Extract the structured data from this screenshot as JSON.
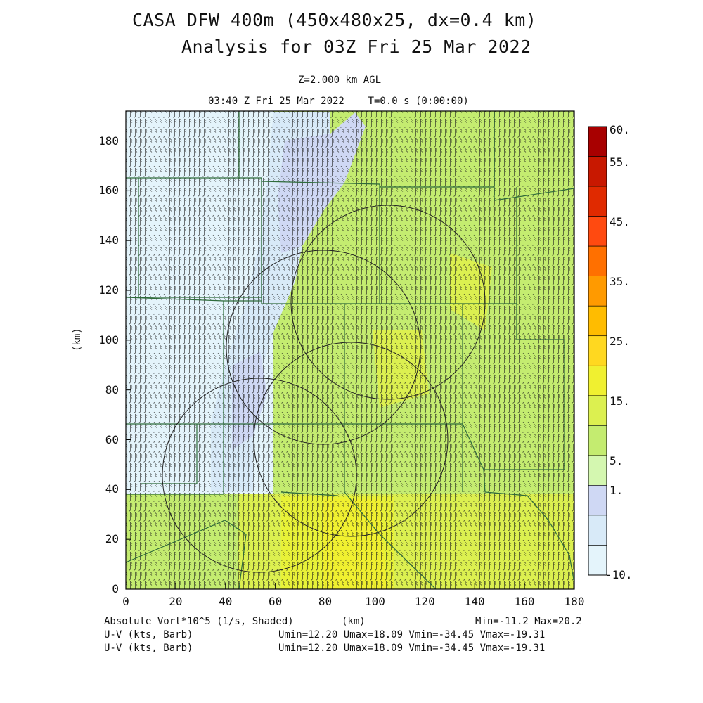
{
  "title": {
    "line1": "CASA DFW 400m (450x480x25, dx=0.4 km)",
    "line2": "Analysis for 03Z Fri 25 Mar 2022"
  },
  "subtitle": {
    "level": "Z=2.000 km AGL",
    "time": "03:40 Z Fri 25 Mar 2022    T=0.0 s (0:00:00)"
  },
  "axes": {
    "ylabel": "(km)",
    "xlabel": "(km)",
    "xticks": [
      "0",
      "20",
      "40",
      "60",
      "80",
      "100",
      "120",
      "140",
      "160",
      "180"
    ],
    "yticks": [
      "0",
      "20",
      "40",
      "60",
      "80",
      "100",
      "120",
      "140",
      "160",
      "180"
    ],
    "xrange": [
      0,
      180
    ],
    "yrange": [
      0,
      192
    ]
  },
  "colorbar": {
    "labels": [
      "60.",
      "55.",
      "45.",
      "35.",
      "25.",
      "15.",
      "5.",
      "1.",
      "-10."
    ],
    "colors": [
      "#a80000",
      "#c81800",
      "#e02a00",
      "#ff4a10",
      "#ff7000",
      "#ff9a00",
      "#ffbc00",
      "#ffd820",
      "#f0f030",
      "#dcf050",
      "#c4ec70",
      "#d4f7b0",
      "#cfd8f4",
      "#d8eaf8",
      "#e4f4fb"
    ]
  },
  "footer": {
    "field": "Absolute Vort*10^5 (1/s, Shaded)",
    "unit": "(km)",
    "minmax": "Min=-11.2 Max=20.2",
    "barb1_label": "U-V (kts, Barb)",
    "barb1_stats": "Umin=12.20 Umax=18.09 Vmin=-34.45 Vmax=-19.31",
    "barb2_label": "U-V (kts, Barb)",
    "barb2_stats": "Umin=12.20 Umax=18.09 Vmin=-34.45 Vmax=-19.31"
  },
  "chart_data": {
    "type": "heatmap",
    "title": "CASA DFW 400m (450x480x25, dx=0.4 km)",
    "subtitle": "Analysis for 03Z Fri 25 Mar 2022",
    "xlabel": "(km)",
    "ylabel": "(km)",
    "xlim": [
      0,
      180
    ],
    "ylim": [
      0,
      192
    ],
    "field": "Absolute Vort*10^5 (1/s, Shaded)",
    "min": -11.2,
    "max": 20.2,
    "radar_range_rings_center_km": [
      [
        105,
        116
      ],
      [
        79,
        98
      ],
      [
        89,
        70
      ],
      [
        40,
        50
      ]
    ],
    "radar_range_rings_radius_km": [
      39,
      39,
      39,
      39
    ]
  }
}
